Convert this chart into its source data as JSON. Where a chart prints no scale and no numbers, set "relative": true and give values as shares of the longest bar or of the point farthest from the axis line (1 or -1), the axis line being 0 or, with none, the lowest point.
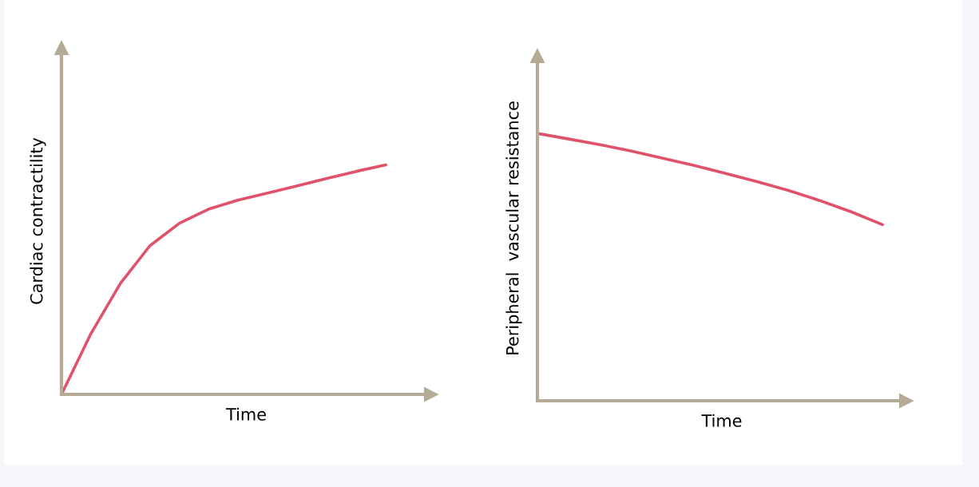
{
  "chart_data": [
    {
      "type": "line",
      "relative": true,
      "xlabel": "Time",
      "ylabel": "Cardiac contractility",
      "tick_labels": false,
      "categories": [
        null,
        null,
        null,
        null,
        null,
        null,
        null,
        null,
        null,
        null,
        null,
        null
      ],
      "series": [
        {
          "color": "#e0526a",
          "values": [
            0,
            0.265,
            0.484,
            0.648,
            0.746,
            0.808,
            0.847,
            0.878,
            0.909,
            0.941,
            0.972,
            1
          ]
        }
      ]
    },
    {
      "type": "line",
      "relative": true,
      "xlabel": "Time",
      "ylabel": "Peripheral  vascular resistance",
      "tick_labels": false,
      "categories": [
        null,
        null,
        null,
        null,
        null,
        null,
        null,
        null,
        null,
        null,
        null,
        null
      ],
      "series": [
        {
          "color": "#e0526a",
          "values": [
            1,
            0.979,
            0.958,
            0.934,
            0.907,
            0.88,
            0.85,
            0.82,
            0.787,
            0.749,
            0.707,
            0.659
          ]
        }
      ]
    }
  ]
}
